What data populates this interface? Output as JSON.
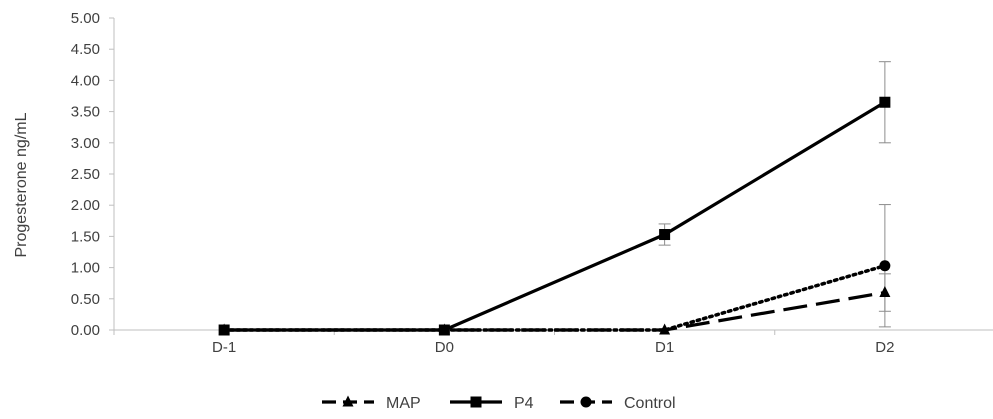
{
  "chart_data": {
    "type": "line",
    "title": "",
    "xlabel": "",
    "ylabel": "Progesterone ng/mL",
    "categories": [
      "D-1",
      "D0",
      "D1",
      "D2"
    ],
    "ylim": [
      0,
      5
    ],
    "yticks": [
      "0.00",
      "0.50",
      "1.00",
      "1.50",
      "2.00",
      "2.50",
      "3.00",
      "3.50",
      "4.00",
      "4.50",
      "5.00"
    ],
    "grid": false,
    "legend_position": "bottom",
    "series": [
      {
        "name": "MAP",
        "values": [
          0,
          0,
          0,
          0.6
        ],
        "error": [
          0,
          0,
          0,
          0.3
        ],
        "marker": "triangle",
        "line_style": "long-dash",
        "color": "#000000"
      },
      {
        "name": "P4",
        "values": [
          0,
          0,
          1.53,
          3.65
        ],
        "error": [
          0,
          0,
          0.17,
          0.65
        ],
        "marker": "square",
        "line_style": "solid",
        "color": "#000000"
      },
      {
        "name": "Control",
        "values": [
          0,
          0,
          0,
          1.03
        ],
        "error": [
          0,
          0,
          0,
          0.98
        ],
        "marker": "circle",
        "line_style": "dotted",
        "color": "#000000"
      }
    ]
  }
}
